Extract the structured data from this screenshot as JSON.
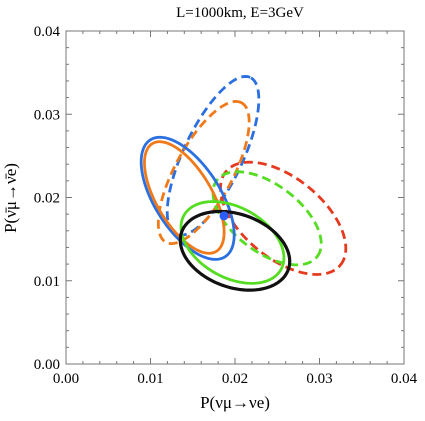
{
  "chart_data": {
    "type": "scatter",
    "title": "L=1000km, E=3GeV",
    "xlabel": "P(νμ→νe)",
    "ylabel": "P(ν̄μ→ν̄e)",
    "xlim": [
      0.0,
      0.04
    ],
    "ylim": [
      0.0,
      0.04
    ],
    "xticks": [
      "0.00",
      "0.01",
      "0.02",
      "0.03",
      "0.04"
    ],
    "yticks": [
      "0.00",
      "0.01",
      "0.02",
      "0.03",
      "0.04"
    ],
    "xtick_values": [
      0.0,
      0.01,
      0.02,
      0.03,
      0.04
    ],
    "ytick_values": [
      0.0,
      0.01,
      0.02,
      0.03,
      0.04
    ],
    "grid": false,
    "point": {
      "x": 0.0187,
      "y": 0.0178,
      "color": "#2b5cff"
    },
    "ellipses": [
      {
        "color": "#2b6fe0",
        "style": "dashed",
        "cx": 0.0174,
        "cy": 0.025,
        "rx": 0.0104,
        "ry": 0.0035,
        "angle": 65
      },
      {
        "color": "#f07a1a",
        "style": "dashed",
        "cx": 0.0163,
        "cy": 0.023,
        "rx": 0.0095,
        "ry": 0.0034,
        "angle": 62
      },
      {
        "color": "#e53a1f",
        "style": "dashed",
        "cx": 0.0257,
        "cy": 0.0175,
        "rx": 0.0088,
        "ry": 0.0048,
        "angle": -40
      },
      {
        "color": "#55dd22",
        "style": "dashed",
        "cx": 0.0238,
        "cy": 0.0175,
        "rx": 0.0075,
        "ry": 0.004,
        "angle": -38
      },
      {
        "color": "#2b6fe0",
        "style": "solid",
        "cx": 0.0144,
        "cy": 0.0199,
        "rx": 0.0083,
        "ry": 0.0039,
        "angle": -58
      },
      {
        "color": "#f07a1a",
        "style": "solid",
        "cx": 0.014,
        "cy": 0.02,
        "rx": 0.0075,
        "ry": 0.0033,
        "angle": -60
      },
      {
        "color": "#55dd22",
        "style": "solid",
        "cx": 0.0197,
        "cy": 0.0146,
        "rx": 0.0066,
        "ry": 0.0042,
        "angle": -30
      },
      {
        "color": "#111111",
        "style": "solid",
        "cx": 0.02,
        "cy": 0.0136,
        "rx": 0.0067,
        "ry": 0.0044,
        "angle": -20
      }
    ]
  }
}
